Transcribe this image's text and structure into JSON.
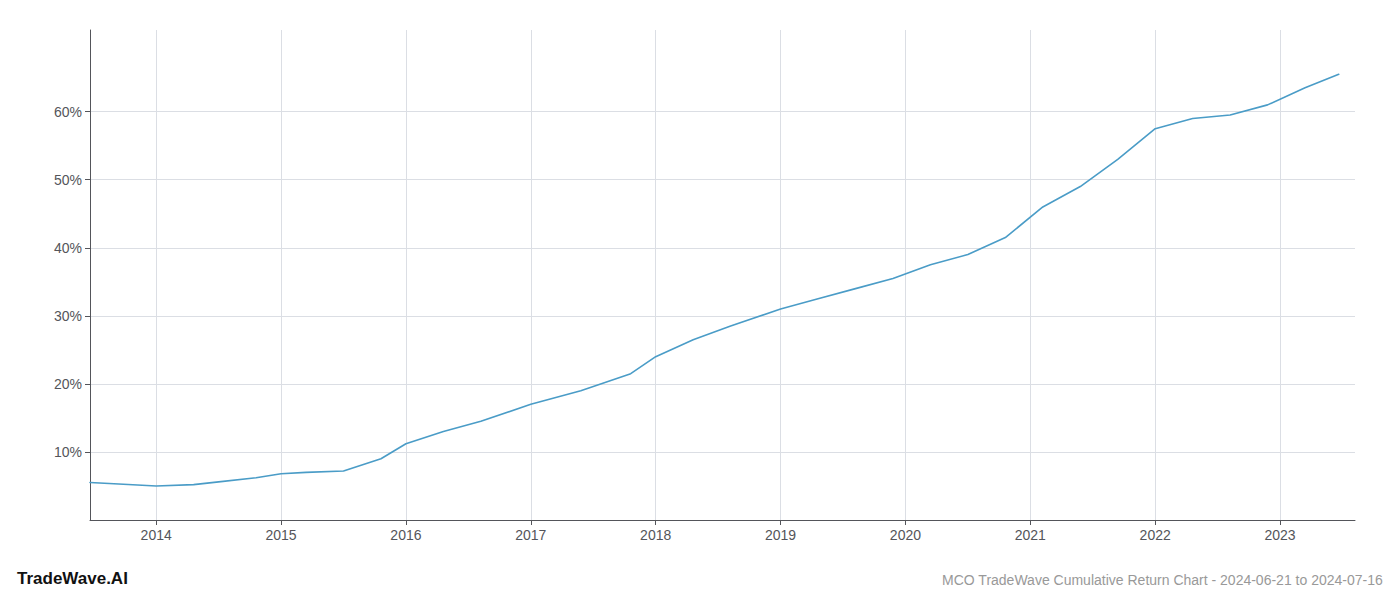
{
  "chart_data": {
    "type": "line",
    "title": "MCO TradeWave Cumulative Return Chart - 2024-06-21 to 2024-07-16",
    "annotations": [
      "TradeWave.AI"
    ],
    "x": [
      2013.47,
      2013.7,
      2014.0,
      2014.3,
      2014.5,
      2014.8,
      2015.0,
      2015.2,
      2015.5,
      2015.8,
      2016.0,
      2016.3,
      2016.6,
      2017.0,
      2017.4,
      2017.8,
      2018.0,
      2018.3,
      2018.6,
      2019.0,
      2019.3,
      2019.6,
      2019.9,
      2020.2,
      2020.5,
      2020.8,
      2021.1,
      2021.4,
      2021.7,
      2022.0,
      2022.3,
      2022.6,
      2022.9,
      2023.2,
      2023.47
    ],
    "values": [
      5.5,
      5.3,
      5.0,
      5.2,
      5.6,
      6.2,
      6.8,
      7.0,
      7.2,
      9.0,
      11.2,
      13.0,
      14.5,
      17.0,
      19.0,
      21.5,
      24.0,
      26.5,
      28.5,
      31.0,
      32.5,
      34.0,
      35.5,
      37.5,
      39.0,
      41.5,
      46.0,
      49.0,
      53.0,
      57.5,
      59.0,
      59.5,
      61.0,
      63.5,
      65.5
    ],
    "color": "#4a9cc7",
    "xlim": [
      2013.47,
      2023.6
    ],
    "xticks": [
      2014,
      2015,
      2016,
      2017,
      2018,
      2019,
      2020,
      2021,
      2022,
      2023
    ],
    "ylim": [
      0,
      72
    ],
    "yticks": [
      {
        "value": 10,
        "label": "10%"
      },
      {
        "value": 20,
        "label": "20%"
      },
      {
        "value": 30,
        "label": "30%"
      },
      {
        "value": 40,
        "label": "40%"
      },
      {
        "value": 50,
        "label": "50%"
      },
      {
        "value": 60,
        "label": "60%"
      }
    ],
    "grid": true
  }
}
